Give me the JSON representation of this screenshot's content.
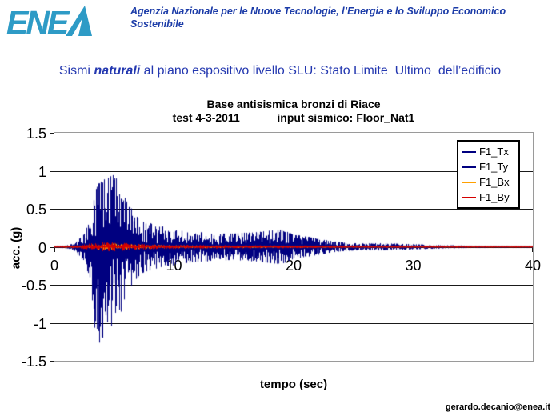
{
  "header": {
    "logo_name": "ENEA",
    "logo_color": "#2e9bc6",
    "agency_line1": "Agenzia Nazionale per le Nuove Tecnologie, l’Energia e lo Sviluppo Economico",
    "agency_line2": "Sostenibile"
  },
  "slide_title": {
    "run1": "Sismi ",
    "run2": "naturali",
    "run3": " al piano espositivo livello SLU: Stato Limite  Ultimo  dell’edificio"
  },
  "footer": {
    "email": "gerardo.decanio@enea.it"
  },
  "colors": {
    "title_blue": "#2438b0",
    "header_blue": "#1c3ca8",
    "grid": "#1a1a1a",
    "plot_border": "#9a9a9a",
    "navy": "#000080",
    "orange": "#ffa000",
    "red": "#d40000"
  },
  "chart_data": {
    "type": "line",
    "title": "Base antisismica bronzi di Riace",
    "subtitle": "test 4-3-2011            input sismico: Floor_Nat1",
    "xlabel": "tempo (sec)",
    "ylabel": "acc. (g)",
    "xlim": [
      0,
      40
    ],
    "ylim": [
      -1.5,
      1.5
    ],
    "x_ticks": [
      0,
      10,
      20,
      30,
      40
    ],
    "y_ticks": [
      1.5,
      1,
      0.5,
      0,
      -0.5,
      -1,
      -1.5
    ],
    "grid": "horizontal",
    "legend_position": "top-right-inside",
    "description": "Seismic acceleration time histories; dense waveforms represented by positive/negative amplitude envelopes [time_sec, acc_g] read from the plot",
    "series": [
      {
        "name": "F1_Tx",
        "color": "#000080",
        "env_pos": [
          [
            0,
            0.012
          ],
          [
            1,
            0.02
          ],
          [
            1.5,
            0.04
          ],
          [
            2,
            0.1
          ],
          [
            2.5,
            0.18
          ],
          [
            3,
            0.4
          ],
          [
            3.3,
            0.65
          ],
          [
            3.6,
            0.85
          ],
          [
            4,
            0.9
          ],
          [
            4.5,
            0.95
          ],
          [
            5,
            0.97
          ],
          [
            5.4,
            0.85
          ],
          [
            6,
            0.62
          ],
          [
            6.5,
            0.5
          ],
          [
            7,
            0.38
          ],
          [
            7.5,
            0.33
          ],
          [
            8,
            0.32
          ],
          [
            9,
            0.27
          ],
          [
            10,
            0.23
          ],
          [
            11,
            0.21
          ],
          [
            12,
            0.2
          ],
          [
            13,
            0.19
          ],
          [
            14,
            0.18
          ],
          [
            15,
            0.18
          ],
          [
            16,
            0.19
          ],
          [
            17,
            0.2
          ],
          [
            18,
            0.22
          ],
          [
            19,
            0.23
          ],
          [
            19.5,
            0.2
          ],
          [
            20,
            0.16
          ],
          [
            21,
            0.14
          ],
          [
            22,
            0.11
          ],
          [
            23,
            0.08
          ],
          [
            24,
            0.06
          ],
          [
            25,
            0.05
          ],
          [
            26,
            0.045
          ],
          [
            27,
            0.05
          ],
          [
            28,
            0.045
          ],
          [
            29,
            0.04
          ],
          [
            30,
            0.035
          ],
          [
            31,
            0.03
          ],
          [
            32,
            0.025
          ],
          [
            33,
            0.02
          ],
          [
            35,
            0.015
          ],
          [
            40,
            0.012
          ]
        ],
        "env_neg": [
          [
            0,
            0.012
          ],
          [
            1,
            0.02
          ],
          [
            1.5,
            0.04
          ],
          [
            2,
            0.12
          ],
          [
            2.5,
            0.22
          ],
          [
            3,
            0.5
          ],
          [
            3.3,
            1.1
          ],
          [
            3.5,
            1.4
          ],
          [
            3.8,
            1.25
          ],
          [
            4.2,
            1.15
          ],
          [
            4.6,
            1.2
          ],
          [
            5,
            1.0
          ],
          [
            5.5,
            0.9
          ],
          [
            6,
            0.7
          ],
          [
            6.5,
            0.5
          ],
          [
            7,
            0.4
          ],
          [
            7.5,
            0.34
          ],
          [
            8,
            0.32
          ],
          [
            9,
            0.27
          ],
          [
            10,
            0.25
          ],
          [
            11,
            0.22
          ],
          [
            12,
            0.2
          ],
          [
            13,
            0.19
          ],
          [
            14,
            0.18
          ],
          [
            15,
            0.18
          ],
          [
            16,
            0.19
          ],
          [
            17,
            0.2
          ],
          [
            18,
            0.22
          ],
          [
            19,
            0.23
          ],
          [
            19.5,
            0.2
          ],
          [
            20,
            0.16
          ],
          [
            21,
            0.14
          ],
          [
            22,
            0.11
          ],
          [
            23,
            0.08
          ],
          [
            24,
            0.06
          ],
          [
            25,
            0.05
          ],
          [
            26,
            0.045
          ],
          [
            27,
            0.05
          ],
          [
            28,
            0.045
          ],
          [
            29,
            0.04
          ],
          [
            30,
            0.035
          ],
          [
            31,
            0.03
          ],
          [
            32,
            0.025
          ],
          [
            33,
            0.02
          ],
          [
            35,
            0.015
          ],
          [
            40,
            0.012
          ]
        ]
      },
      {
        "name": "F1_Ty",
        "color": "#000080",
        "env_pos": [
          [
            0,
            0.012
          ],
          [
            1,
            0.02
          ],
          [
            1.5,
            0.04
          ],
          [
            2,
            0.1
          ],
          [
            2.5,
            0.18
          ],
          [
            3,
            0.4
          ],
          [
            3.3,
            0.65
          ],
          [
            3.6,
            0.85
          ],
          [
            4,
            0.9
          ],
          [
            4.5,
            0.95
          ],
          [
            5,
            0.97
          ],
          [
            5.4,
            0.85
          ],
          [
            6,
            0.62
          ],
          [
            6.5,
            0.5
          ],
          [
            7,
            0.38
          ],
          [
            7.5,
            0.33
          ],
          [
            8,
            0.32
          ],
          [
            9,
            0.27
          ],
          [
            10,
            0.23
          ],
          [
            11,
            0.21
          ],
          [
            12,
            0.2
          ],
          [
            13,
            0.19
          ],
          [
            14,
            0.18
          ],
          [
            15,
            0.18
          ],
          [
            16,
            0.19
          ],
          [
            17,
            0.2
          ],
          [
            18,
            0.22
          ],
          [
            19,
            0.23
          ],
          [
            19.5,
            0.2
          ],
          [
            20,
            0.16
          ],
          [
            21,
            0.14
          ],
          [
            22,
            0.11
          ],
          [
            23,
            0.08
          ],
          [
            24,
            0.06
          ],
          [
            25,
            0.05
          ],
          [
            26,
            0.045
          ],
          [
            27,
            0.05
          ],
          [
            28,
            0.045
          ],
          [
            29,
            0.04
          ],
          [
            30,
            0.035
          ],
          [
            31,
            0.03
          ],
          [
            32,
            0.025
          ],
          [
            33,
            0.02
          ],
          [
            35,
            0.015
          ],
          [
            40,
            0.012
          ]
        ],
        "env_neg": [
          [
            0,
            0.012
          ],
          [
            1,
            0.02
          ],
          [
            1.5,
            0.04
          ],
          [
            2,
            0.12
          ],
          [
            2.5,
            0.22
          ],
          [
            3,
            0.45
          ],
          [
            3.4,
            1.0
          ],
          [
            3.7,
            1.2
          ],
          [
            4,
            1.1
          ],
          [
            4.5,
            1.15
          ],
          [
            5,
            1.0
          ],
          [
            5.5,
            0.9
          ],
          [
            6,
            0.7
          ],
          [
            6.5,
            0.5
          ],
          [
            7,
            0.4
          ],
          [
            7.5,
            0.34
          ],
          [
            8,
            0.32
          ],
          [
            9,
            0.27
          ],
          [
            10,
            0.25
          ],
          [
            11,
            0.22
          ],
          [
            12,
            0.2
          ],
          [
            13,
            0.19
          ],
          [
            14,
            0.18
          ],
          [
            15,
            0.18
          ],
          [
            16,
            0.19
          ],
          [
            17,
            0.2
          ],
          [
            18,
            0.22
          ],
          [
            19,
            0.23
          ],
          [
            19.5,
            0.2
          ],
          [
            20,
            0.16
          ],
          [
            21,
            0.14
          ],
          [
            22,
            0.11
          ],
          [
            23,
            0.08
          ],
          [
            24,
            0.06
          ],
          [
            25,
            0.05
          ],
          [
            26,
            0.045
          ],
          [
            27,
            0.05
          ],
          [
            28,
            0.045
          ],
          [
            29,
            0.04
          ],
          [
            30,
            0.035
          ],
          [
            31,
            0.03
          ],
          [
            32,
            0.025
          ],
          [
            33,
            0.02
          ],
          [
            35,
            0.015
          ],
          [
            40,
            0.012
          ]
        ]
      },
      {
        "name": "F1_Bx",
        "color": "#ffa000",
        "env_pos": [
          [
            0,
            0.008
          ],
          [
            2,
            0.015
          ],
          [
            3,
            0.03
          ],
          [
            4,
            0.045
          ],
          [
            5,
            0.045
          ],
          [
            6,
            0.04
          ],
          [
            7,
            0.03
          ],
          [
            8,
            0.025
          ],
          [
            10,
            0.02
          ],
          [
            15,
            0.016
          ],
          [
            20,
            0.014
          ],
          [
            30,
            0.01
          ],
          [
            40,
            0.008
          ]
        ],
        "env_neg": [
          [
            0,
            0.008
          ],
          [
            2,
            0.015
          ],
          [
            3,
            0.03
          ],
          [
            4,
            0.045
          ],
          [
            5,
            0.045
          ],
          [
            6,
            0.04
          ],
          [
            7,
            0.03
          ],
          [
            8,
            0.025
          ],
          [
            10,
            0.02
          ],
          [
            15,
            0.016
          ],
          [
            20,
            0.014
          ],
          [
            30,
            0.01
          ],
          [
            40,
            0.008
          ]
        ]
      },
      {
        "name": "F1_By",
        "color": "#d40000",
        "env_pos": [
          [
            0,
            0.01
          ],
          [
            2,
            0.02
          ],
          [
            3,
            0.045
          ],
          [
            4,
            0.06
          ],
          [
            5,
            0.06
          ],
          [
            6,
            0.05
          ],
          [
            7,
            0.04
          ],
          [
            8,
            0.032
          ],
          [
            10,
            0.026
          ],
          [
            15,
            0.022
          ],
          [
            20,
            0.018
          ],
          [
            30,
            0.013
          ],
          [
            40,
            0.011
          ]
        ],
        "env_neg": [
          [
            0,
            0.01
          ],
          [
            2,
            0.02
          ],
          [
            3,
            0.045
          ],
          [
            4,
            0.06
          ],
          [
            5,
            0.06
          ],
          [
            6,
            0.05
          ],
          [
            7,
            0.04
          ],
          [
            8,
            0.032
          ],
          [
            10,
            0.026
          ],
          [
            15,
            0.022
          ],
          [
            20,
            0.018
          ],
          [
            30,
            0.013
          ],
          [
            40,
            0.011
          ]
        ]
      }
    ]
  }
}
